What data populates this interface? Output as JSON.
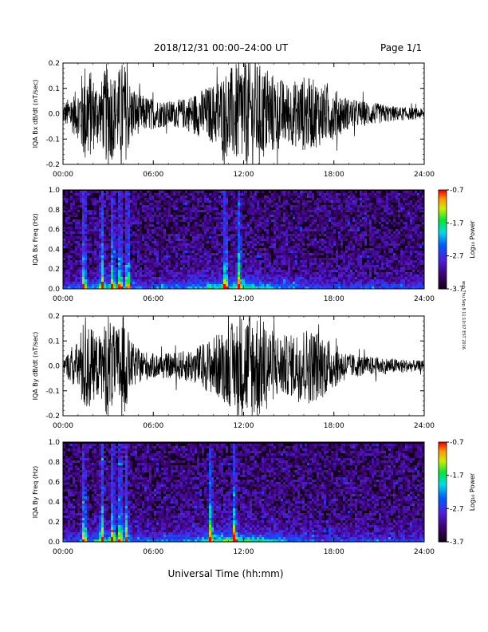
{
  "header": {
    "date_range": "2018/12/31   00:00–24:00 UT",
    "page": "Page 1/1"
  },
  "footer": {
    "xlabel": "Universal Time (hh:mm)"
  },
  "side_note": "wsh Thu Sep 8 11:10:07 EST 2016",
  "chart_data": [
    {
      "type": "line",
      "name": "bx-waveform",
      "ylabel": "IQA Bx dB/dt (nT/sec)",
      "xlim": [
        0,
        24
      ],
      "ylim": [
        -0.2,
        0.2
      ],
      "y_ticks": [
        "-0.2",
        "-0.1",
        "0.0",
        "0.1",
        "0.2"
      ],
      "x_ticks": [
        "00:00",
        "06:00",
        "12:00",
        "18:00",
        "24:00"
      ],
      "envelope_hours": [
        0,
        1,
        1.5,
        2,
        2.5,
        3,
        3.5,
        4,
        4.5,
        5,
        6,
        7,
        8,
        9,
        10,
        11,
        12,
        13,
        14,
        15,
        16,
        17,
        18,
        19,
        20,
        21,
        22,
        23,
        24
      ],
      "envelope_amplitude": [
        0.04,
        0.1,
        0.22,
        0.15,
        0.12,
        0.22,
        0.15,
        0.22,
        0.12,
        0.08,
        0.06,
        0.05,
        0.06,
        0.09,
        0.12,
        0.18,
        0.22,
        0.2,
        0.16,
        0.12,
        0.15,
        0.13,
        0.1,
        0.06,
        0.05,
        0.04,
        0.03,
        0.025,
        0.02
      ]
    },
    {
      "type": "heatmap",
      "name": "bx-spectrogram",
      "ylabel": "IQA Bx Freq (Hz)",
      "xlim": [
        0,
        24
      ],
      "ylim": [
        0,
        1.0
      ],
      "y_ticks": [
        "0.0",
        "0.2",
        "0.4",
        "0.6",
        "0.8",
        "1.0"
      ],
      "x_ticks": [
        "00:00",
        "06:00",
        "12:00",
        "18:00",
        "24:00"
      ],
      "colorbar": {
        "label": "Log₁₀ Power",
        "ticks": [
          "-0.7",
          "-1.7",
          "-2.7",
          "-3.7"
        ],
        "range": [
          -3.7,
          -0.7
        ]
      },
      "burst_hours": [
        1.4,
        2.6,
        3.3,
        3.8,
        4.3,
        10.8,
        11.7
      ]
    },
    {
      "type": "line",
      "name": "by-waveform",
      "ylabel": "IQA By dB/dt (nT/sec)",
      "xlim": [
        0,
        24
      ],
      "ylim": [
        -0.2,
        0.2
      ],
      "y_ticks": [
        "-0.2",
        "-0.1",
        "0.0",
        "0.1",
        "0.2"
      ],
      "x_ticks": [
        "00:00",
        "06:00",
        "12:00",
        "18:00",
        "24:00"
      ],
      "envelope_hours": [
        0,
        1,
        1.5,
        2,
        2.5,
        3,
        3.5,
        4,
        4.5,
        5,
        6,
        7,
        8,
        9,
        10,
        11,
        12,
        13,
        14,
        15,
        16,
        17,
        18,
        19,
        20,
        21,
        22,
        23,
        24
      ],
      "envelope_amplitude": [
        0.03,
        0.1,
        0.22,
        0.14,
        0.12,
        0.22,
        0.14,
        0.22,
        0.1,
        0.07,
        0.05,
        0.05,
        0.06,
        0.08,
        0.12,
        0.16,
        0.22,
        0.22,
        0.14,
        0.12,
        0.16,
        0.14,
        0.09,
        0.05,
        0.04,
        0.035,
        0.03,
        0.025,
        0.02
      ]
    },
    {
      "type": "heatmap",
      "name": "by-spectrogram",
      "ylabel": "IQA By Freq (Hz)",
      "xlim": [
        0,
        24
      ],
      "ylim": [
        0,
        1.0
      ],
      "y_ticks": [
        "0.0",
        "0.2",
        "0.4",
        "0.6",
        "0.8",
        "1.0"
      ],
      "x_ticks": [
        "00:00",
        "06:00",
        "12:00",
        "18:00",
        "24:00"
      ],
      "colorbar": {
        "label": "Log₁₀ Power",
        "ticks": [
          "-0.7",
          "-1.7",
          "-2.7",
          "-3.7"
        ],
        "range": [
          -3.7,
          -0.7
        ]
      },
      "burst_hours": [
        1.4,
        2.6,
        3.3,
        3.8,
        4.2,
        9.8,
        11.4
      ]
    }
  ]
}
